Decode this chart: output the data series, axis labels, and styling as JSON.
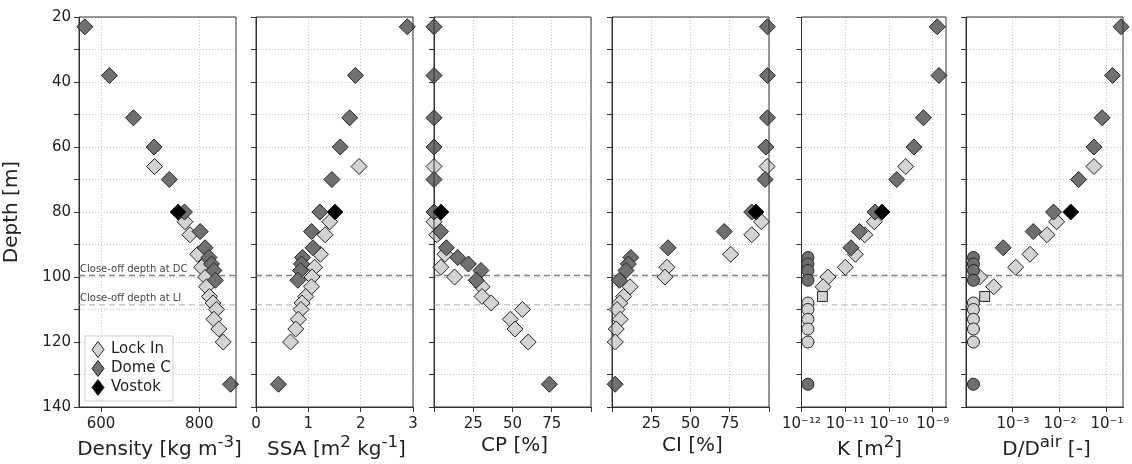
{
  "chart_data": [
    {
      "type": "scatter",
      "xlabel": "Density [kg m$^{-3}$]",
      "ylabel": "Depth [m]",
      "xlim": [
        555,
        875
      ],
      "xticks": [
        600,
        800
      ],
      "ylim": [
        140,
        20
      ],
      "yticks": [
        20,
        {
          "value": 30,
          "label": null
        },
        40,
        {
          "value": 50,
          "label": null
        },
        60,
        {
          "value": 70,
          "label": null
        },
        80,
        {
          "value": 90,
          "label": null
        },
        100,
        {
          "value": 110,
          "label": null
        },
        120,
        {
          "value": 130,
          "label": null
        },
        140
      ],
      "grid": true,
      "legend": "bottom left",
      "ref_lines": [
        {
          "axis": "y",
          "value": 99.5,
          "label": "Close-off depth at DC",
          "color": "#808080",
          "line_style": "dashed"
        },
        {
          "axis": "y",
          "value": 108.5,
          "label": "Close-off depth at LI",
          "color": "#c8c8c8",
          "line_style": "dashed"
        }
      ],
      "series": [
        {
          "name": "Lock In",
          "color": "#d3d3d3",
          "marker": "diamond",
          "x": [
            709,
            771,
            781,
            797,
            805,
            813,
            815,
            821,
            828,
            835,
            830,
            840,
            849
          ],
          "values": [
            66,
            83,
            87,
            93,
            97,
            100,
            103,
            106,
            108,
            110,
            113,
            116,
            120
          ]
        },
        {
          "name": "Dome C",
          "color": "#707070",
          "marker": "diamond",
          "x": [
            567,
            617,
            666,
            708,
            739,
            770,
            802,
            812,
            820,
            825,
            830,
            833,
            864
          ],
          "values": [
            23,
            38,
            51,
            60,
            70,
            80,
            86,
            91,
            94,
            96,
            98,
            101,
            133
          ]
        },
        {
          "name": "Vostok",
          "color": "#000000",
          "marker": "diamond",
          "x": [
            757
          ],
          "values": [
            80
          ]
        }
      ]
    },
    {
      "type": "scatter",
      "xlabel": "SSA [m$^{2}$ kg$^{-1}$]",
      "xlim": [
        0,
        3
      ],
      "xticks": [
        0,
        1,
        2,
        3
      ],
      "ylim": [
        140,
        20
      ],
      "yticks": [
        20,
        30,
        40,
        50,
        60,
        70,
        80,
        90,
        100,
        110,
        120,
        130,
        140
      ],
      "tick_labels": "x",
      "grid": true,
      "ref_lines": [
        {
          "axis": "y",
          "value": 99.5,
          "color": "#808080",
          "line_style": "dashed"
        },
        {
          "axis": "y",
          "value": 108.5,
          "color": "#c8c8c8",
          "line_style": "dashed"
        }
      ],
      "series": [
        {
          "color": "#d3d3d3",
          "marker": "diamond",
          "x": [
            1.97,
            1.41,
            1.32,
            1.23,
            1.12,
            1.07,
            1.06,
            0.95,
            0.88,
            0.86,
            0.81,
            0.76,
            0.66
          ],
          "values": [
            66,
            83,
            87,
            93,
            97,
            100,
            103,
            106,
            108,
            110,
            113,
            116,
            120
          ]
        },
        {
          "color": "#707070",
          "marker": "diamond",
          "x": [
            2.89,
            1.9,
            1.79,
            1.61,
            1.45,
            1.22,
            1.06,
            1.09,
            0.89,
            0.87,
            0.85,
            0.8,
            0.43
          ],
          "values": [
            23,
            38,
            51,
            60,
            70,
            80,
            86,
            91,
            94,
            96,
            98,
            101,
            133
          ]
        },
        {
          "color": "#000000",
          "marker": "diamond",
          "x": [
            1.51
          ],
          "values": [
            80
          ]
        }
      ]
    },
    {
      "type": "scatter",
      "xlabel": "CP [%]",
      "xlim": [
        0,
        100
      ],
      "xticks": [
        {
          "value": 0,
          "label": null
        },
        25,
        50,
        75,
        {
          "value": 100,
          "label": null
        }
      ],
      "ylim": [
        140,
        20
      ],
      "yticks": [
        20,
        30,
        40,
        50,
        60,
        70,
        80,
        90,
        100,
        110,
        120,
        130,
        140
      ],
      "tick_labels": "x",
      "grid": true,
      "ref_lines": [
        {
          "axis": "y",
          "value": 99.5,
          "color": "#808080",
          "line_style": "dashed"
        },
        {
          "axis": "y",
          "value": 108.5,
          "color": "#c8c8c8",
          "line_style": "dashed"
        }
      ],
      "series": [
        {
          "color": "#d3d3d3",
          "marker": "diamond",
          "x": [
            0,
            0,
            1.8,
            7,
            4.4,
            13.1,
            30.6,
            30.6,
            36.4,
            56.3,
            48.7,
            51.6,
            60
          ],
          "values": [
            66,
            83,
            87,
            93,
            97,
            100,
            103,
            106,
            108,
            110,
            113,
            116,
            120
          ]
        },
        {
          "color": "#707070",
          "marker": "diamond",
          "x": [
            0,
            0,
            0,
            0,
            0,
            0,
            4.2,
            7.9,
            15.1,
            21.9,
            29.9,
            26.9,
            73.5
          ],
          "values": [
            23,
            38,
            51,
            60,
            70,
            80,
            86,
            91,
            94,
            96,
            98,
            101,
            133
          ]
        },
        {
          "color": "#000000",
          "marker": "diamond",
          "x": [
            4.4
          ],
          "values": [
            80
          ]
        }
      ]
    },
    {
      "type": "scatter",
      "xlabel": "CI [%]",
      "xlim": [
        0,
        100
      ],
      "xticks": [
        {
          "value": 0,
          "label": null
        },
        25,
        50,
        75,
        {
          "value": 100,
          "label": null
        }
      ],
      "ylim": [
        140,
        20
      ],
      "yticks": [
        20,
        30,
        40,
        50,
        60,
        70,
        80,
        90,
        100,
        110,
        120,
        130,
        140
      ],
      "tick_labels": "x",
      "grid": true,
      "ref_lines": [
        {
          "axis": "y",
          "value": 99.5,
          "color": "#808080",
          "line_style": "dashed"
        },
        {
          "axis": "y",
          "value": 108.5,
          "color": "#c8c8c8",
          "line_style": "dashed"
        }
      ],
      "series": [
        {
          "color": "#d3d3d3",
          "marker": "diamond",
          "x": [
            98.8,
            95.2,
            89,
            75.6,
            35,
            33.7,
            11.5,
            7.4,
            4.9,
            3.2,
            5.2,
            2.7,
            2.1
          ],
          "values": [
            66,
            83,
            87,
            93,
            97,
            100,
            103,
            106,
            108,
            110,
            113,
            116,
            120
          ]
        },
        {
          "color": "#707070",
          "marker": "diamond",
          "x": [
            99,
            99,
            99,
            98,
            97.5,
            89,
            71.5,
            35.7,
            12,
            10.4,
            8.9,
            4.7,
            2
          ],
          "values": [
            23,
            38,
            51,
            60,
            70,
            80,
            86,
            91,
            94,
            96,
            98,
            101,
            133
          ]
        },
        {
          "color": "#000000",
          "marker": "diamond",
          "x": [
            91.7
          ],
          "values": [
            80
          ]
        }
      ]
    },
    {
      "type": "scatter",
      "xlabel": "K [m$^{2}$]",
      "log": "x",
      "xlim": [
        1e-12,
        2e-09
      ],
      "xticks": [
        {
          "value": 1e-12,
          "label": "10⁻¹²"
        },
        {
          "value": 1e-11,
          "label": "10⁻¹¹"
        },
        {
          "value": 1e-10,
          "label": "10⁻¹⁰"
        },
        {
          "value": 1e-09,
          "label": "10⁻⁹"
        }
      ],
      "ylim": [
        140,
        20
      ],
      "yticks": [
        20,
        30,
        40,
        50,
        60,
        70,
        80,
        90,
        100,
        110,
        120,
        130,
        140
      ],
      "tick_labels": "x",
      "grid": true,
      "ref_lines": [
        {
          "axis": "y",
          "value": 99.5,
          "color": "#808080",
          "line_style": "dashed"
        },
        {
          "axis": "y",
          "value": 108.5,
          "color": "#c8c8c8",
          "line_style": "dashed"
        }
      ],
      "series": [
        {
          "color": "#d3d3d3",
          "marker": "diamond",
          "x": [
            2.4e-10,
            4.6e-11,
            2.8e-11,
            1.7e-11,
            1e-11,
            4e-12,
            3.1e-12
          ],
          "values": [
            66,
            83,
            87,
            93,
            97,
            100,
            103
          ]
        },
        {
          "color": "#707070",
          "marker": "diamond",
          "x": [
            1.26e-09,
            1.38e-09,
            6.1e-10,
            3.7e-10,
            1.5e-10,
            4.8e-11,
            2.1e-11,
            1.35e-11
          ],
          "values": [
            23,
            38,
            51,
            60,
            70,
            80,
            86,
            91
          ]
        },
        {
          "color": "#000000",
          "marker": "diamond",
          "x": [
            6.9e-11
          ],
          "values": [
            80
          ]
        },
        {
          "color": "#d3d3d3",
          "marker": "square",
          "x": [
            3e-12
          ],
          "values": [
            106
          ]
        },
        {
          "color": "#d3d3d3",
          "marker": "circle",
          "x": [
            1.4e-12,
            1.4e-12,
            1.4e-12,
            1.4e-12,
            1.4e-12
          ],
          "values": [
            108,
            110,
            113,
            116,
            120
          ]
        },
        {
          "color": "#707070",
          "marker": "circle",
          "x": [
            1.4e-12,
            1.4e-12,
            1.4e-12,
            1.4e-12,
            1.4e-12
          ],
          "values": [
            94,
            96,
            98,
            101,
            133
          ]
        }
      ]
    },
    {
      "type": "scatter",
      "xlabel": "D/D$^{air}$ [-]",
      "log": "x",
      "xlim": [
        0.0001,
        0.22
      ],
      "xticks": [
        {
          "value": 0.001,
          "label": "10⁻³"
        },
        {
          "value": 0.01,
          "label": "10⁻²"
        },
        {
          "value": 0.1,
          "label": "10⁻¹"
        }
      ],
      "ylim": [
        140,
        20
      ],
      "yticks": [
        20,
        30,
        40,
        50,
        60,
        70,
        80,
        90,
        100,
        110,
        120,
        130,
        140
      ],
      "tick_labels": "x",
      "grid": true,
      "ref_lines": [
        {
          "axis": "y",
          "value": 99.5,
          "color": "#808080",
          "line_style": "dashed"
        },
        {
          "axis": "y",
          "value": 108.5,
          "color": "#c8c8c8",
          "line_style": "dashed"
        }
      ],
      "series": [
        {
          "color": "#d3d3d3",
          "marker": "diamond",
          "x": [
            0.053,
            0.0085,
            0.0053,
            0.0023,
            0.00114,
            0.000195,
            0.00039
          ],
          "values": [
            66,
            83,
            87,
            93,
            97,
            100,
            103
          ]
        },
        {
          "color": "#707070",
          "marker": "diamond",
          "x": [
            0.2,
            0.131,
            0.079,
            0.053,
            0.025,
            0.0073,
            0.0027,
            0.00062
          ],
          "values": [
            23,
            38,
            51,
            60,
            70,
            80,
            86,
            91
          ]
        },
        {
          "color": "#000000",
          "marker": "diamond",
          "x": [
            0.017
          ],
          "values": [
            80
          ]
        },
        {
          "color": "#d3d3d3",
          "marker": "square",
          "x": [
            0.00025
          ],
          "values": [
            106
          ]
        },
        {
          "color": "#d3d3d3",
          "marker": "circle",
          "x": [
            0.000144,
            0.000144,
            0.000144,
            0.000144,
            0.000144
          ],
          "values": [
            108,
            110,
            113,
            116,
            120
          ]
        },
        {
          "color": "#707070",
          "marker": "circle",
          "x": [
            0.000144,
            0.000144,
            0.000144,
            0.000144,
            0.000144
          ],
          "values": [
            94,
            96,
            98,
            101,
            133
          ]
        }
      ]
    }
  ]
}
